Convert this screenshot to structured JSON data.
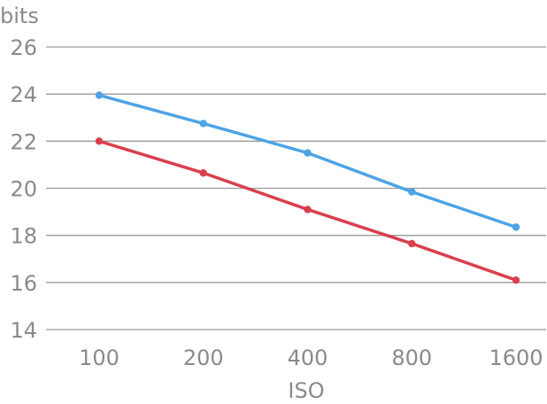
{
  "chart_data": {
    "type": "line",
    "title": "",
    "xlabel": "ISO",
    "ylabel": "bits",
    "categories": [
      "100",
      "200",
      "400",
      "800",
      "1600"
    ],
    "ylim": [
      14,
      26
    ],
    "yticks": [
      14,
      16,
      18,
      20,
      22,
      24,
      26
    ],
    "grid": true,
    "legend": "none",
    "series": [
      {
        "color": "#4ea3e6",
        "values": [
          23.95,
          22.75,
          21.5,
          19.85,
          18.35
        ]
      },
      {
        "color": "#d93f4c",
        "values": [
          22.0,
          20.65,
          19.1,
          17.65,
          16.1
        ]
      }
    ]
  }
}
